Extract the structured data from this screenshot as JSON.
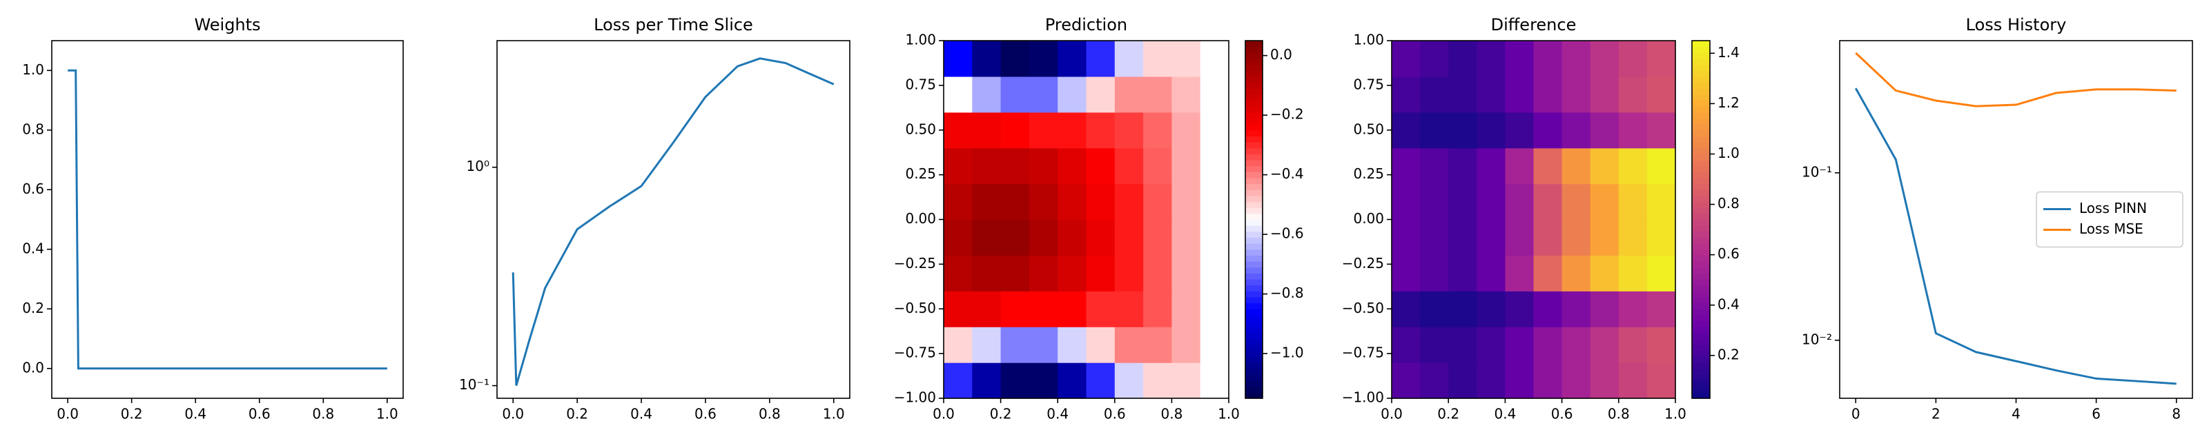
{
  "chart_data": [
    {
      "type": "line",
      "title": "Weights",
      "x": [
        0,
        0.025,
        0.033,
        1
      ],
      "values": [
        1,
        1,
        0,
        0
      ],
      "color": "#1f77b4",
      "xlim": [
        -0.05,
        1.05
      ],
      "ylim": [
        -0.1,
        1.1
      ],
      "xticks": [
        {
          "value": 0,
          "label": "0.0"
        },
        {
          "value": 0.2,
          "label": "0.2"
        },
        {
          "value": 0.4,
          "label": "0.4"
        },
        {
          "value": 0.6,
          "label": "0.6"
        },
        {
          "value": 0.8,
          "label": "0.8"
        },
        {
          "value": 1,
          "label": "1.0"
        }
      ],
      "yticks": [
        {
          "value": 0,
          "label": "0.0"
        },
        {
          "value": 0.2,
          "label": "0.2"
        },
        {
          "value": 0.4,
          "label": "0.4"
        },
        {
          "value": 0.6,
          "label": "0.6"
        },
        {
          "value": 0.8,
          "label": "0.8"
        },
        {
          "value": 1,
          "label": "1.0"
        }
      ]
    },
    {
      "type": "line",
      "title": "Loss per Time Slice",
      "ylog": true,
      "x": [
        0,
        0.01,
        0.05,
        0.1,
        0.2,
        0.3,
        0.4,
        0.5,
        0.6,
        0.7,
        0.77,
        0.85,
        0.92,
        1.0
      ],
      "values": [
        0.33,
        0.1,
        0.16,
        0.28,
        0.52,
        0.66,
        0.82,
        1.3,
        2.1,
        2.9,
        3.15,
        3.0,
        2.7,
        2.4
      ],
      "color": "#1f77b4",
      "xlim": [
        -0.05,
        1.05
      ],
      "ylim": [
        0.0875,
        3.8
      ],
      "xticks": [
        {
          "value": 0,
          "label": "0.0"
        },
        {
          "value": 0.2,
          "label": "0.2"
        },
        {
          "value": 0.4,
          "label": "0.4"
        },
        {
          "value": 0.6,
          "label": "0.6"
        },
        {
          "value": 0.8,
          "label": "0.8"
        },
        {
          "value": 1,
          "label": "1.0"
        }
      ],
      "yticks": [
        {
          "value": 0.1,
          "label": "10⁻¹"
        },
        {
          "value": 1,
          "label": "10⁰"
        }
      ]
    },
    {
      "type": "heatmap",
      "title": "Prediction",
      "colormap": "seismic",
      "clim": [
        -1.15,
        0.05
      ],
      "xlim": [
        0,
        1
      ],
      "ylim": [
        -1,
        1
      ],
      "values": [
        [
          -0.8,
          -1.0,
          -1.1,
          -1.1,
          -1.0,
          -0.8,
          -0.6,
          -0.5,
          -0.5,
          -0.55
        ],
        [
          -0.5,
          -0.6,
          -0.7,
          -0.7,
          -0.6,
          -0.5,
          -0.4,
          -0.4,
          -0.45,
          -0.55
        ],
        [
          -0.2,
          -0.2,
          -0.25,
          -0.25,
          -0.25,
          -0.3,
          -0.3,
          -0.35,
          -0.45,
          -0.55
        ],
        [
          -0.08,
          -0.05,
          -0.05,
          -0.1,
          -0.15,
          -0.22,
          -0.28,
          -0.35,
          -0.45,
          -0.55
        ],
        [
          -0.05,
          0.0,
          0.0,
          -0.05,
          -0.12,
          -0.2,
          -0.28,
          -0.35,
          -0.45,
          -0.55
        ],
        [
          -0.08,
          -0.03,
          -0.03,
          -0.08,
          -0.15,
          -0.22,
          -0.28,
          -0.35,
          -0.45,
          -0.55
        ],
        [
          -0.12,
          -0.1,
          -0.1,
          -0.12,
          -0.18,
          -0.24,
          -0.3,
          -0.36,
          -0.45,
          -0.55
        ],
        [
          -0.22,
          -0.22,
          -0.25,
          -0.27,
          -0.27,
          -0.3,
          -0.32,
          -0.37,
          -0.45,
          -0.55
        ],
        [
          -0.55,
          -0.65,
          -0.72,
          -0.72,
          -0.62,
          -0.5,
          -0.42,
          -0.42,
          -0.47,
          -0.55
        ],
        [
          -0.85,
          -1.05,
          -1.12,
          -1.1,
          -1.0,
          -0.8,
          -0.6,
          -0.5,
          -0.5,
          -0.55
        ]
      ],
      "xticks": [
        {
          "value": 0,
          "label": "0.0"
        },
        {
          "value": 0.2,
          "label": "0.2"
        },
        {
          "value": 0.4,
          "label": "0.4"
        },
        {
          "value": 0.6,
          "label": "0.6"
        },
        {
          "value": 0.8,
          "label": "0.8"
        },
        {
          "value": 1,
          "label": "1.0"
        }
      ],
      "yticks": [
        {
          "value": -1,
          "label": "−1.00"
        },
        {
          "value": -0.75,
          "label": "−0.75"
        },
        {
          "value": -0.5,
          "label": "−0.50"
        },
        {
          "value": -0.25,
          "label": "−0.25"
        },
        {
          "value": 0,
          "label": "0.00"
        },
        {
          "value": 0.25,
          "label": "0.25"
        },
        {
          "value": 0.5,
          "label": "0.50"
        },
        {
          "value": 0.75,
          "label": "0.75"
        },
        {
          "value": 1,
          "label": "1.00"
        }
      ],
      "cticks": [
        {
          "value": -1,
          "label": "−1.0"
        },
        {
          "value": -0.8,
          "label": "−0.8"
        },
        {
          "value": -0.6,
          "label": "−0.6"
        },
        {
          "value": -0.4,
          "label": "−0.4"
        },
        {
          "value": -0.2,
          "label": "−0.2"
        },
        {
          "value": 0,
          "label": "0.0"
        }
      ]
    },
    {
      "type": "heatmap",
      "title": "Difference",
      "colormap": "plasma",
      "clim": [
        0.03,
        1.45
      ],
      "xlim": [
        0,
        1
      ],
      "ylim": [
        -1,
        1
      ],
      "values": [
        [
          0.25,
          0.2,
          0.15,
          0.2,
          0.3,
          0.45,
          0.55,
          0.65,
          0.72,
          0.78
        ],
        [
          0.2,
          0.15,
          0.15,
          0.2,
          0.3,
          0.45,
          0.55,
          0.65,
          0.75,
          0.8
        ],
        [
          0.12,
          0.08,
          0.08,
          0.12,
          0.18,
          0.3,
          0.4,
          0.5,
          0.6,
          0.65
        ],
        [
          0.3,
          0.25,
          0.2,
          0.3,
          0.55,
          0.9,
          1.1,
          1.25,
          1.35,
          1.42
        ],
        [
          0.3,
          0.25,
          0.2,
          0.3,
          0.5,
          0.8,
          1.0,
          1.15,
          1.3,
          1.38
        ],
        [
          0.3,
          0.25,
          0.2,
          0.3,
          0.5,
          0.8,
          1.0,
          1.15,
          1.3,
          1.38
        ],
        [
          0.3,
          0.25,
          0.2,
          0.3,
          0.55,
          0.9,
          1.1,
          1.25,
          1.35,
          1.42
        ],
        [
          0.12,
          0.08,
          0.08,
          0.12,
          0.18,
          0.3,
          0.4,
          0.5,
          0.6,
          0.65
        ],
        [
          0.2,
          0.15,
          0.15,
          0.2,
          0.3,
          0.45,
          0.55,
          0.65,
          0.75,
          0.8
        ],
        [
          0.25,
          0.2,
          0.15,
          0.2,
          0.3,
          0.45,
          0.55,
          0.65,
          0.72,
          0.78
        ]
      ],
      "xticks": [
        {
          "value": 0,
          "label": "0.0"
        },
        {
          "value": 0.2,
          "label": "0.2"
        },
        {
          "value": 0.4,
          "label": "0.4"
        },
        {
          "value": 0.6,
          "label": "0.6"
        },
        {
          "value": 0.8,
          "label": "0.8"
        },
        {
          "value": 1,
          "label": "1.0"
        }
      ],
      "yticks": [
        {
          "value": -1,
          "label": "−1.00"
        },
        {
          "value": -0.75,
          "label": "−0.75"
        },
        {
          "value": -0.5,
          "label": "−0.50"
        },
        {
          "value": -0.25,
          "label": "−0.25"
        },
        {
          "value": 0,
          "label": "0.00"
        },
        {
          "value": 0.25,
          "label": "0.25"
        },
        {
          "value": 0.5,
          "label": "0.50"
        },
        {
          "value": 0.75,
          "label": "0.75"
        },
        {
          "value": 1,
          "label": "1.00"
        }
      ],
      "cticks": [
        0.2,
        0.4,
        0.6,
        0.8,
        {
          "value": 1,
          "label": "1.0"
        },
        1.2,
        1.4
      ]
    },
    {
      "type": "line",
      "title": "Loss History",
      "ylog": true,
      "legend": "center right",
      "x": [
        0,
        1,
        2,
        3,
        4,
        5,
        6,
        7,
        8
      ],
      "series": [
        {
          "name": "Loss PINN",
          "color": "#1f77b4",
          "values": [
            0.32,
            0.12,
            0.011,
            0.0085,
            0.0075,
            0.0066,
            0.0059,
            0.0057,
            0.0055
          ]
        },
        {
          "name": "Loss MSE",
          "color": "#ff7f0e",
          "values": [
            0.52,
            0.31,
            0.27,
            0.25,
            0.255,
            0.3,
            0.315,
            0.315,
            0.31
          ]
        }
      ],
      "xlim": [
        -0.4,
        8.4
      ],
      "ylim": [
        0.0045,
        0.616
      ],
      "xticks": [
        0,
        2,
        4,
        6,
        8
      ],
      "yticks": [
        {
          "value": 0.01,
          "label": "10⁻²"
        },
        {
          "value": 0.1,
          "label": "10⁻¹"
        }
      ]
    }
  ]
}
